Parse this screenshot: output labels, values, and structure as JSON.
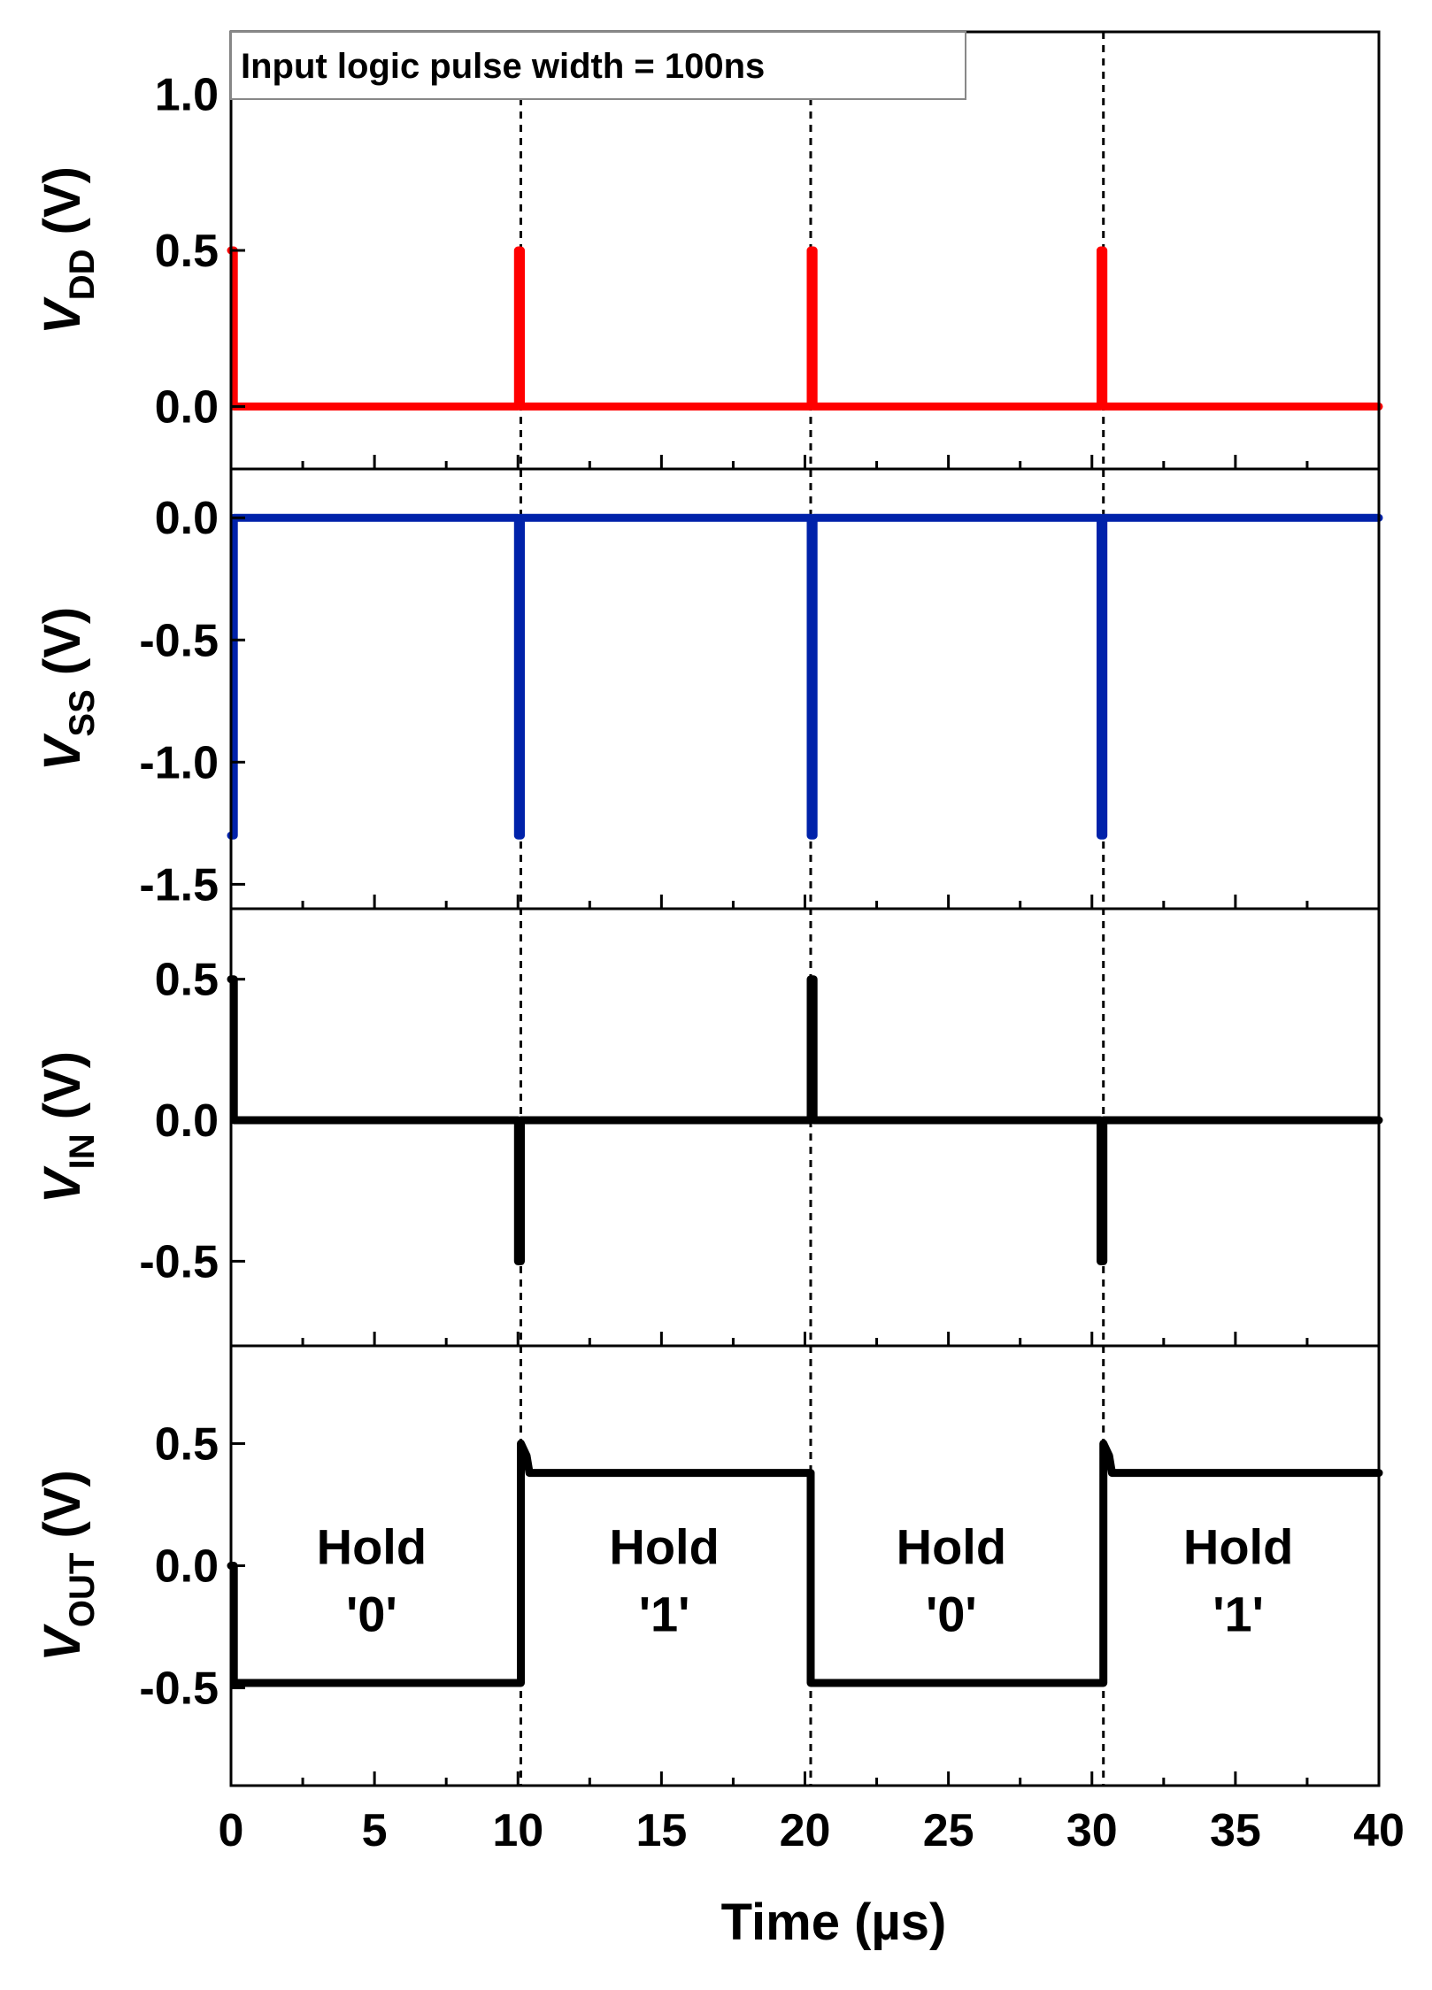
{
  "chart_data": {
    "type": "line",
    "x_axis": {
      "label": "Time (µs)",
      "range": [
        0,
        40
      ],
      "ticks": [
        "0",
        "5",
        "10",
        "15",
        "20",
        "25",
        "30",
        "35",
        "40"
      ]
    },
    "annotation": "Input logic pulse width = 100ns",
    "markers_x": [
      10.1,
      20.2,
      30.4
    ],
    "panels": [
      {
        "ylabel_main": "V",
        "ylabel_sub": "DD",
        "ylabel_unit": " (V)",
        "color": "#ff0000",
        "ylim": [
          -0.2,
          1.2
        ],
        "yticks": [
          "0.0",
          "0.5",
          "1.0"
        ],
        "series": [
          {
            "x": [
              0,
              0.05,
              0.1,
              0.1,
              10.0,
              10.0,
              10.1,
              10.1,
              20.2,
              20.2,
              20.3,
              20.3,
              30.3,
              30.3,
              30.4,
              30.4,
              40
            ],
            "y": [
              0.5,
              0.5,
              0.5,
              0,
              0,
              0.5,
              0.5,
              0,
              0,
              0.5,
              0.5,
              0,
              0,
              0.5,
              0.5,
              0,
              0
            ]
          }
        ]
      },
      {
        "ylabel_main": "V",
        "ylabel_sub": "SS",
        "ylabel_unit": " (V)",
        "color": "#0022aa",
        "ylim": [
          -1.6,
          0.2
        ],
        "yticks": [
          "0.0",
          "-0.5",
          "-1.0",
          "-1.5"
        ],
        "series": [
          {
            "x": [
              0,
              0.1,
              0.1,
              10.0,
              10.0,
              10.1,
              10.1,
              20.2,
              20.2,
              20.3,
              20.3,
              30.3,
              30.3,
              30.4,
              30.4,
              40
            ],
            "y": [
              -1.3,
              -1.3,
              0,
              0,
              -1.3,
              -1.3,
              0,
              0,
              -1.3,
              -1.3,
              0,
              0,
              -1.3,
              -1.3,
              0,
              0
            ]
          }
        ]
      },
      {
        "ylabel_main": "V",
        "ylabel_sub": "IN",
        "ylabel_unit": " (V)",
        "color": "#000000",
        "ylim": [
          -0.8,
          0.75
        ],
        "yticks": [
          "0.5",
          "0.0",
          "-0.5"
        ],
        "series": [
          {
            "x": [
              0,
              0.1,
              0.1,
              10.0,
              10.0,
              10.1,
              10.1,
              20.2,
              20.2,
              20.3,
              20.3,
              30.3,
              30.3,
              30.4,
              30.4,
              40
            ],
            "y": [
              0.5,
              0.5,
              0,
              0,
              -0.5,
              -0.5,
              0,
              0,
              0.5,
              0.5,
              0,
              0,
              -0.5,
              -0.5,
              0,
              0
            ]
          }
        ]
      },
      {
        "ylabel_main": "V",
        "ylabel_sub": "OUT",
        "ylabel_unit": " (V)",
        "color": "#000000",
        "ylim": [
          -0.9,
          0.9
        ],
        "yticks": [
          "0.5",
          "0.0",
          "-0.5"
        ],
        "series": [
          {
            "x": [
              0,
              0.1,
              0.1,
              10.1,
              10.1,
              10.3,
              10.4,
              20.2,
              20.2,
              30.4,
              30.4,
              30.6,
              30.7,
              40
            ],
            "y": [
              0,
              0,
              -0.48,
              -0.48,
              0.5,
              0.45,
              0.38,
              0.38,
              -0.48,
              -0.48,
              0.5,
              0.45,
              0.38,
              0.38
            ]
          }
        ],
        "labels": [
          {
            "x": 4.9,
            "lines": [
              "Hold",
              "'0'"
            ]
          },
          {
            "x": 15.1,
            "lines": [
              "Hold",
              "'1'"
            ]
          },
          {
            "x": 25.1,
            "lines": [
              "Hold",
              "'0'"
            ]
          },
          {
            "x": 35.1,
            "lines": [
              "Hold",
              "'1'"
            ]
          }
        ]
      }
    ]
  }
}
